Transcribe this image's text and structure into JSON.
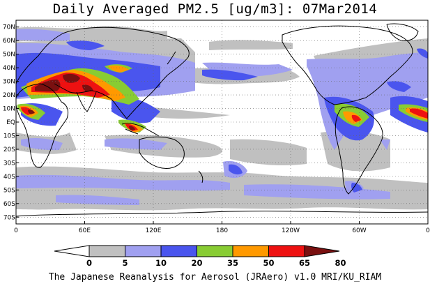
{
  "title": "Daily Averaged PM2.5 [ug/m3]: 07Mar2014",
  "credit": "The Japanese Reanalysis for Aerosol (JRAero) v1.0 MRI/KU_RIAM",
  "map": {
    "projection": "equirectangular",
    "lon_range": [
      0,
      360
    ],
    "lat_range": [
      -75,
      75
    ],
    "lat_ticks": [
      {
        "lat": 70,
        "label": "70N"
      },
      {
        "lat": 60,
        "label": "60N"
      },
      {
        "lat": 50,
        "label": "50N"
      },
      {
        "lat": 40,
        "label": "40N"
      },
      {
        "lat": 30,
        "label": "30N"
      },
      {
        "lat": 20,
        "label": "20N"
      },
      {
        "lat": 10,
        "label": "10N"
      },
      {
        "lat": 0,
        "label": "EQ"
      },
      {
        "lat": -10,
        "label": "10S"
      },
      {
        "lat": -20,
        "label": "20S"
      },
      {
        "lat": -30,
        "label": "30S"
      },
      {
        "lat": -40,
        "label": "40S"
      },
      {
        "lat": -50,
        "label": "50S"
      },
      {
        "lat": -60,
        "label": "60S"
      },
      {
        "lat": -70,
        "label": "70S"
      }
    ],
    "lon_ticks": [
      {
        "lon": 0,
        "label": "0"
      },
      {
        "lon": 60,
        "label": "60E"
      },
      {
        "lon": 120,
        "label": "120E"
      },
      {
        "lon": 180,
        "label": "180"
      },
      {
        "lon": 240,
        "label": "120W"
      },
      {
        "lon": 300,
        "label": "60W"
      },
      {
        "lon": 360,
        "label": "0"
      }
    ],
    "gridlines": "dotted"
  },
  "colorbar": {
    "levels": [
      "0",
      "5",
      "10",
      "20",
      "35",
      "50",
      "65",
      "80"
    ],
    "colors": [
      "#ffffff",
      "#c0c0c0",
      "#a0a0f0",
      "#4a55ee",
      "#88cc33",
      "#ff9900",
      "#ee1111",
      "#7a1010"
    ]
  }
}
